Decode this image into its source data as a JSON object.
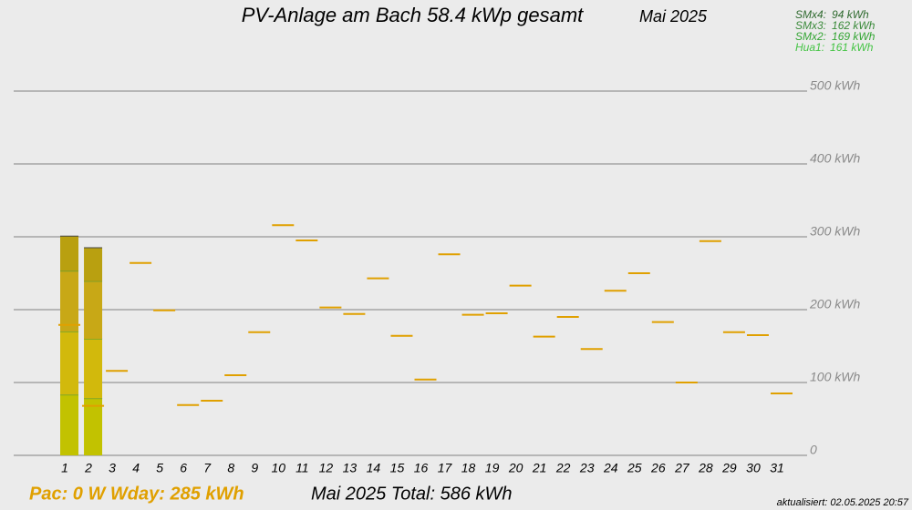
{
  "chart_data": {
    "type": "stacked_bar",
    "title": "PV-Anlage am Bach 58.4 kWp gesamt",
    "period": "Mai 2025",
    "categories": [
      "1",
      "2",
      "3",
      "4",
      "5",
      "6",
      "7",
      "8",
      "9",
      "10",
      "11",
      "12",
      "13",
      "14",
      "15",
      "16",
      "17",
      "18",
      "19",
      "20",
      "21",
      "22",
      "23",
      "24",
      "25",
      "26",
      "27",
      "28",
      "29",
      "30",
      "31"
    ],
    "series": [
      {
        "name": "Hua1:",
        "total": "161 kWh",
        "color": "#c2c200",
        "legend_color": "#44c444",
        "values": [
          83,
          78,
          null,
          null,
          null,
          null,
          null,
          null,
          null,
          null,
          null,
          null,
          null,
          null,
          null,
          null,
          null,
          null,
          null,
          null,
          null,
          null,
          null,
          null,
          null,
          null,
          null,
          null,
          null,
          null,
          null
        ]
      },
      {
        "name": "SMx2:",
        "total": "169 kWh",
        "color": "#d2b90c",
        "legend_color": "#33a533",
        "values": [
          87,
          82,
          null,
          null,
          null,
          null,
          null,
          null,
          null,
          null,
          null,
          null,
          null,
          null,
          null,
          null,
          null,
          null,
          null,
          null,
          null,
          null,
          null,
          null,
          null,
          null,
          null,
          null,
          null,
          null,
          null
        ]
      },
      {
        "name": "SMx3:",
        "total": "162 kWh",
        "color": "#c8a816",
        "legend_color": "#3a8a3a",
        "values": [
          83,
          79,
          null,
          null,
          null,
          null,
          null,
          null,
          null,
          null,
          null,
          null,
          null,
          null,
          null,
          null,
          null,
          null,
          null,
          null,
          null,
          null,
          null,
          null,
          null,
          null,
          null,
          null,
          null,
          null,
          null
        ]
      },
      {
        "name": "SMx4:",
        "total": "94 kWh",
        "color": "#b9a010",
        "legend_color": "#2f6a2f",
        "values": [
          48,
          46,
          null,
          null,
          null,
          null,
          null,
          null,
          null,
          null,
          null,
          null,
          null,
          null,
          null,
          null,
          null,
          null,
          null,
          null,
          null,
          null,
          null,
          null,
          null,
          null,
          null,
          null,
          null,
          null,
          null
        ]
      }
    ],
    "markers": {
      "color": "#e0a000",
      "values": [
        179,
        68,
        116,
        264,
        199,
        69,
        75,
        110,
        169,
        316,
        295,
        203,
        194,
        243,
        164,
        104,
        276,
        193,
        195,
        233,
        163,
        190,
        146,
        226,
        250,
        183,
        100,
        294,
        169,
        165,
        85
      ]
    },
    "ylim": [
      0,
      500
    ],
    "yticks": [
      0,
      {
        "value": 100,
        "label": "100 kWh"
      },
      {
        "value": 200,
        "label": "200 kWh"
      },
      {
        "value": 300,
        "label": "300 kWh"
      },
      {
        "value": 400,
        "label": "400 kWh"
      },
      {
        "value": 500,
        "label": "500 kWh"
      }
    ],
    "grid": true,
    "status": "Pac: 0 W  Wday: 285 kWh",
    "total": "Mai 2025 Total:  586 kWh",
    "updated": "aktualisiert: 02.05.2025 20:57"
  }
}
